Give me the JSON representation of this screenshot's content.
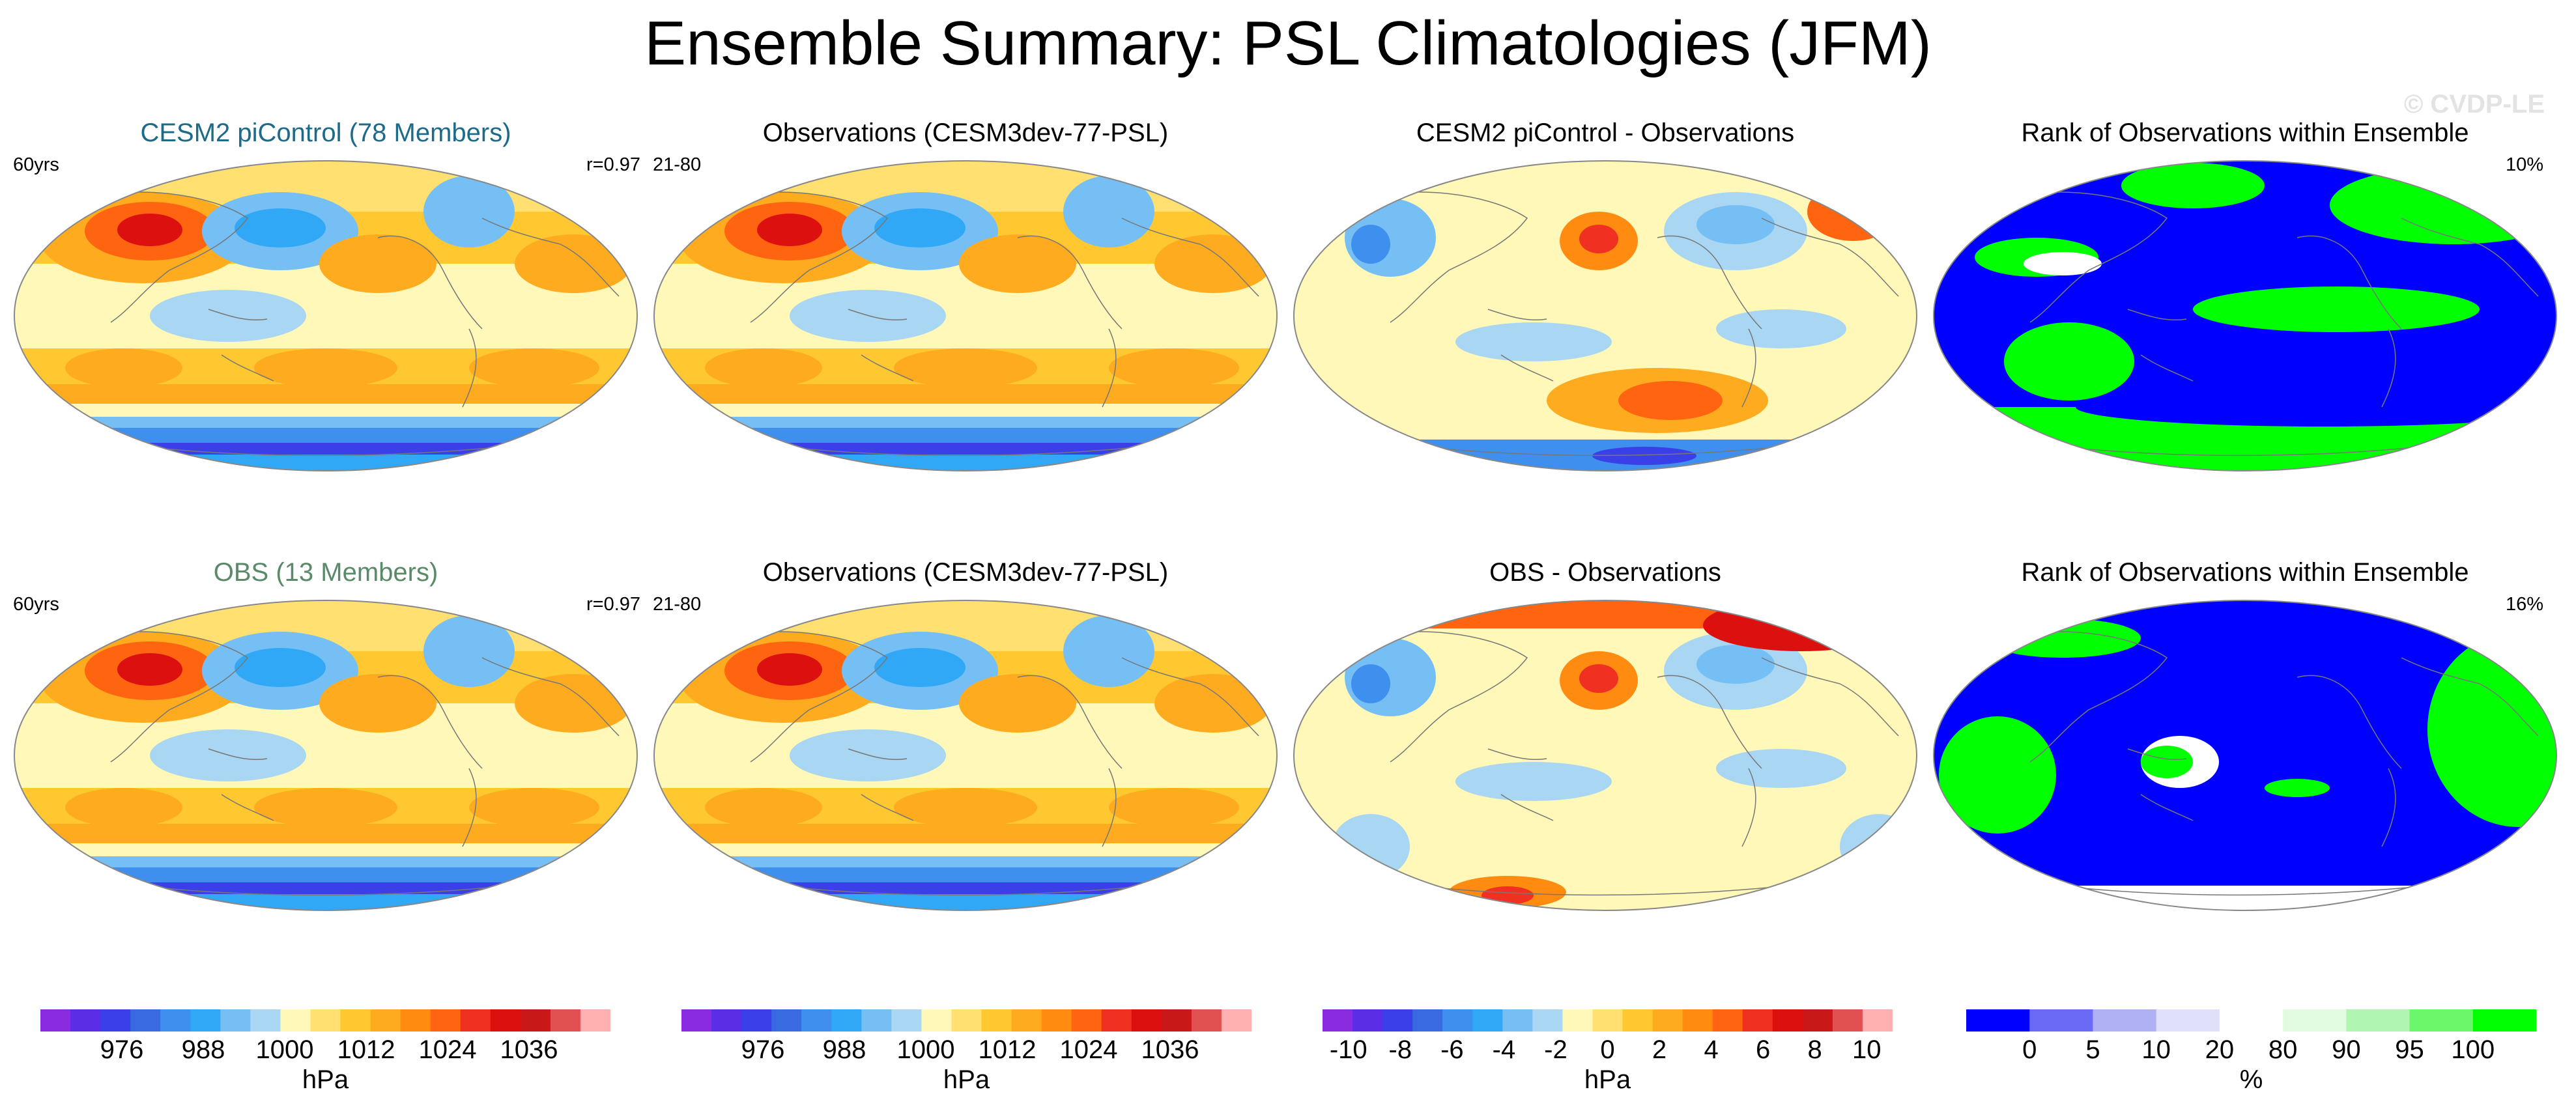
{
  "title": "Ensemble Summary: PSL Climatologies (JFM)",
  "watermark": "© CVDP-LE",
  "colors": {
    "ensemble_title": "#1c6b8a",
    "obs_title": "#5a8a6a",
    "coast": "#777777"
  },
  "panels": [
    {
      "id": "r1c1",
      "title": "CESM2 piControl (78 Members)",
      "left": "60yrs",
      "right": "r=0.97",
      "kind": "clim",
      "color": "ensemble"
    },
    {
      "id": "r1c2",
      "title": "Observations (CESM3dev-77-PSL)",
      "left": "21-80",
      "right": "",
      "kind": "clim",
      "color": "black"
    },
    {
      "id": "r1c3",
      "title": "CESM2 piControl - Observations",
      "left": "",
      "right": "",
      "kind": "diff",
      "color": "black"
    },
    {
      "id": "r1c4",
      "title": "Rank of Observations within Ensemble",
      "left": "",
      "right": "10%",
      "kind": "rank",
      "color": "black"
    },
    {
      "id": "r2c1",
      "title": "OBS (13 Members)",
      "left": "60yrs",
      "right": "r=0.97",
      "kind": "clim",
      "color": "obs"
    },
    {
      "id": "r2c2",
      "title": "Observations (CESM3dev-77-PSL)",
      "left": "21-80",
      "right": "",
      "kind": "clim",
      "color": "black"
    },
    {
      "id": "r2c3",
      "title": "OBS - Observations",
      "left": "",
      "right": "",
      "kind": "diff",
      "color": "black"
    },
    {
      "id": "r2c4",
      "title": "Rank of Observations within Ensemble",
      "left": "",
      "right": "16%",
      "kind": "rank",
      "color": "black"
    }
  ],
  "chart_data": [
    {
      "type": "heatmap",
      "name": "PSL colorbar",
      "units": "hPa",
      "tick_labels": [
        "976",
        "988",
        "1000",
        "1012",
        "1024",
        "1036"
      ],
      "ticks": [
        976,
        988,
        1000,
        1012,
        1024,
        1036
      ],
      "range": [
        964,
        1048
      ],
      "colors": [
        "#8a2be2",
        "#5b2ee6",
        "#3b3fe8",
        "#3a6ae0",
        "#3f8fef",
        "#30a8f5",
        "#75bff5",
        "#a9d6f2",
        "#fff8b8",
        "#ffe070",
        "#ffc830",
        "#ffab20",
        "#ff8c10",
        "#ff6410",
        "#f03020",
        "#dd1010",
        "#c81818",
        "#e05050",
        "#ffb0b0"
      ]
    },
    {
      "type": "heatmap",
      "name": "PSL difference colorbar",
      "units": "hPa",
      "tick_labels": [
        "-10",
        "-8",
        "-6",
        "-4",
        "-2",
        "0",
        "2",
        "4",
        "6",
        "8",
        "10"
      ],
      "ticks": [
        -10,
        -8,
        -6,
        -4,
        -2,
        0,
        2,
        4,
        6,
        8,
        10
      ],
      "range": [
        -11,
        11
      ],
      "colors": [
        "#8a2be2",
        "#5b2ee6",
        "#3b3fe8",
        "#3a6ae0",
        "#3f8fef",
        "#30a8f5",
        "#75bff5",
        "#a9d6f2",
        "#fff8b8",
        "#ffe070",
        "#ffc830",
        "#ffab20",
        "#ff8c10",
        "#ff6410",
        "#f03020",
        "#dd1010",
        "#c81818",
        "#e05050",
        "#ffb0b0"
      ]
    },
    {
      "type": "heatmap",
      "name": "Rank colorbar",
      "units": "%",
      "tick_labels": [
        "0",
        "5",
        "10",
        "20",
        "80",
        "90",
        "95",
        "100"
      ],
      "boundaries": [
        0,
        5,
        10,
        20,
        80,
        90,
        95,
        100
      ],
      "colors": [
        "#0000ff",
        "#6a6af7",
        "#b0b0f5",
        "#e0e0fb",
        "#ffffff",
        "#e0fbe0",
        "#b0f5b0",
        "#6af76a",
        "#00ff00"
      ]
    }
  ]
}
